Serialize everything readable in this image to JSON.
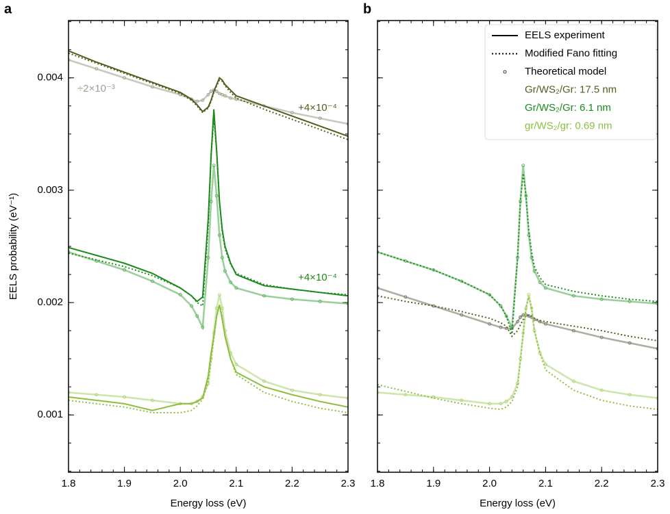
{
  "chart_data": [
    {
      "type": "line",
      "panel": "a",
      "xlabel": "Energy loss (eV)",
      "ylabel": "EELS probability (eV⁻¹)",
      "xlim": [
        1.8,
        2.3
      ],
      "ylim": [
        0.00049,
        0.00451
      ],
      "xticks": [
        1.8,
        1.9,
        {
          "value": 2,
          "label": "2.0"
        },
        2.1,
        2.2,
        2.3
      ],
      "yticks": [
        0.001,
        0.002,
        0.003,
        0.004
      ],
      "ytick_labels": true,
      "xminor": 0.02,
      "yminor": 0.00025,
      "tick_direction": "in",
      "x": [
        1.8,
        1.85,
        1.9,
        1.95,
        2.0,
        2.02,
        2.03,
        2.04,
        2.05,
        2.055,
        2.06,
        2.065,
        2.07,
        2.075,
        2.08,
        2.09,
        2.1,
        2.15,
        2.2,
        2.25,
        2.3
      ],
      "series": [
        {
          "color": "#4f5f1f",
          "theory_color": "#9a9a86",
          "experiment": [
            0.00424,
            0.00414,
            0.00405,
            0.00396,
            0.00387,
            0.00381,
            0.00376,
            0.0037,
            0.00374,
            0.0038,
            0.00388,
            0.00394,
            0.004,
            0.00398,
            0.00394,
            0.00389,
            0.00384,
            0.00375,
            0.00366,
            0.00357,
            0.00348
          ],
          "fit": [
            0.00422,
            0.00413,
            0.00404,
            0.00395,
            0.00386,
            0.0038,
            0.00375,
            0.00369,
            0.00373,
            0.00379,
            0.00387,
            0.00393,
            0.00398,
            0.00397,
            0.00393,
            0.00387,
            0.00382,
            0.00372,
            0.00363,
            0.00354,
            0.00345
          ],
          "theory": [
            0.00416,
            0.00408,
            0.004,
            0.00392,
            0.00385,
            0.00381,
            0.00379,
            0.0038,
            0.00385,
            0.00388,
            0.00389,
            0.00388,
            0.00386,
            0.00385,
            0.00384,
            0.00382,
            0.00381,
            0.00375,
            0.00369,
            0.00364,
            0.00359
          ]
        },
        {
          "color": "#1a8a1a",
          "theory_color": "#4aa84a",
          "experiment": [
            0.00249,
            0.00242,
            0.00235,
            0.00226,
            0.00213,
            0.00206,
            0.00201,
            0.00205,
            0.00275,
            0.0033,
            0.00372,
            0.00335,
            0.0029,
            0.00265,
            0.0025,
            0.00235,
            0.00225,
            0.00215,
            0.00212,
            0.00209,
            0.00206
          ],
          "fit": [
            0.00244,
            0.00238,
            0.00232,
            0.00224,
            0.00213,
            0.00206,
            0.002,
            0.00197,
            0.0027,
            0.0033,
            0.00365,
            0.00335,
            0.0029,
            0.00263,
            0.00248,
            0.00234,
            0.00226,
            0.00216,
            0.00212,
            0.00209,
            0.00207
          ],
          "theory": [
            0.00245,
            0.00237,
            0.00229,
            0.00219,
            0.00207,
            0.00197,
            0.00188,
            0.00178,
            0.0024,
            0.0029,
            0.00322,
            0.00295,
            0.0026,
            0.0024,
            0.00228,
            0.00218,
            0.00213,
            0.00206,
            0.00203,
            0.00201,
            0.00199
          ]
        },
        {
          "color": "#8cbf3f",
          "theory_color": "#a8cf6a",
          "experiment": [
            0.00116,
            0.00113,
            0.0011,
            0.00104,
            0.0011,
            0.0011,
            0.00112,
            0.00115,
            0.00135,
            0.00155,
            0.0017,
            0.00188,
            0.00198,
            0.00185,
            0.0017,
            0.0015,
            0.00138,
            0.00125,
            0.00118,
            0.00112,
            0.00107
          ],
          "fit": [
            0.00113,
            0.0011,
            0.00107,
            0.00102,
            0.00102,
            0.00104,
            0.00108,
            0.00114,
            0.0013,
            0.00148,
            0.00168,
            0.00187,
            0.00198,
            0.00187,
            0.0017,
            0.0015,
            0.00136,
            0.0012,
            0.00112,
            0.00106,
            0.00102
          ],
          "theory": [
            0.0012,
            0.00118,
            0.00116,
            0.00113,
            0.0011,
            0.0011,
            0.00112,
            0.00116,
            0.00128,
            0.0015,
            0.00173,
            0.00195,
            0.00207,
            0.00195,
            0.00175,
            0.00155,
            0.00145,
            0.0013,
            0.00122,
            0.00118,
            0.00115
          ]
        }
      ],
      "annotations": [
        {
          "text": "÷2×10⁻³",
          "color": "#a0a08c"
        },
        {
          "text": "+4×10⁻⁴",
          "color": "#4f5f1f"
        },
        {
          "text": "+4×10⁻⁴",
          "color": "#1a8a1a"
        }
      ]
    },
    {
      "type": "line",
      "panel": "b",
      "xlabel": "Energy loss (eV)",
      "xlim": [
        1.8,
        2.3
      ],
      "ylim": [
        0.00049,
        0.00451
      ],
      "xticks": [
        1.8,
        1.9,
        {
          "value": 2,
          "label": "2.0"
        },
        2.1,
        2.2,
        2.3
      ],
      "yticks": [
        0.001,
        0.002,
        0.003,
        0.004
      ],
      "ytick_labels": false,
      "xminor": 0.02,
      "yminor": 0.00025,
      "tick_direction": "in",
      "x": [
        1.8,
        1.85,
        1.9,
        1.95,
        2.0,
        2.02,
        2.03,
        2.04,
        2.05,
        2.055,
        2.06,
        2.065,
        2.07,
        2.075,
        2.08,
        2.09,
        2.1,
        2.15,
        2.2,
        2.25,
        2.3
      ],
      "legend": {
        "corner": "upper right",
        "styles": [
          "EELS experiment",
          "Modified Fano fitting",
          "Theoretical model"
        ]
      },
      "series": [
        {
          "name": "Gr/WS₂/Gr: 17.5 nm",
          "color": "#4f5f1f",
          "theory_color": "#6b6b55",
          "fit": [
            0.00206,
            0.00201,
            0.00197,
            0.00192,
            0.00186,
            0.00182,
            0.00179,
            0.0017,
            0.00175,
            0.0018,
            0.00185,
            0.00188,
            0.00189,
            0.00188,
            0.00186,
            0.00184,
            0.00183,
            0.00179,
            0.00175,
            0.0017,
            0.00166
          ],
          "theory": [
            0.00213,
            0.00205,
            0.00197,
            0.00189,
            0.00181,
            0.00178,
            0.00177,
            0.00177,
            0.00183,
            0.00187,
            0.00189,
            0.00189,
            0.00188,
            0.00187,
            0.00185,
            0.00183,
            0.00181,
            0.00175,
            0.00169,
            0.00164,
            0.00159
          ]
        },
        {
          "name": "Gr/WS₂/Gr: 6.1 nm",
          "color": "#1a8a1a",
          "theory_color": "#4aa84a",
          "fit": [
            0.00245,
            0.00237,
            0.00229,
            0.00219,
            0.00207,
            0.00197,
            0.00188,
            0.00172,
            0.0024,
            0.0029,
            0.00315,
            0.00295,
            0.00265,
            0.00245,
            0.00232,
            0.00222,
            0.00216,
            0.0021,
            0.00206,
            0.00203,
            0.00201
          ],
          "theory": [
            0.00245,
            0.00237,
            0.00229,
            0.00219,
            0.00207,
            0.00197,
            0.00188,
            0.00178,
            0.0024,
            0.0029,
            0.00322,
            0.00295,
            0.0026,
            0.0024,
            0.00228,
            0.00218,
            0.00213,
            0.00206,
            0.00203,
            0.00201,
            0.00199
          ]
        },
        {
          "name": "gr/WS₂/gr: 0.69 nm",
          "color": "#8cbf3f",
          "theory_color": "#a8cf6a",
          "fit": [
            0.00127,
            0.00121,
            0.00115,
            0.0011,
            0.00106,
            0.00105,
            0.00107,
            0.00112,
            0.00125,
            0.00148,
            0.00172,
            0.00195,
            0.00205,
            0.00195,
            0.00175,
            0.00155,
            0.0014,
            0.00122,
            0.00113,
            0.00108,
            0.00105
          ],
          "theory": [
            0.0012,
            0.00118,
            0.00116,
            0.00113,
            0.0011,
            0.0011,
            0.00112,
            0.00116,
            0.00128,
            0.0015,
            0.00173,
            0.00195,
            0.00207,
            0.00195,
            0.00175,
            0.00155,
            0.00145,
            0.0013,
            0.00122,
            0.00118,
            0.00115
          ]
        }
      ]
    }
  ]
}
